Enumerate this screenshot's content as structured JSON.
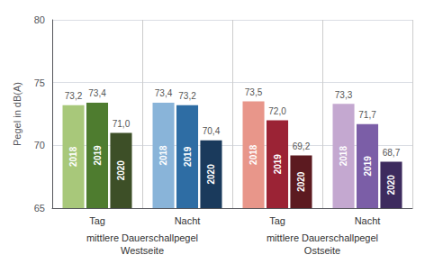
{
  "chart_data": {
    "type": "bar",
    "categories": [
      "Tag",
      "Nacht",
      "Tag",
      "Nacht"
    ],
    "series": [
      {
        "name": "2018",
        "values": [
          73.2,
          73.4,
          73.5,
          73.3
        ],
        "value_labels": [
          "73,2",
          "73,4",
          "73,5",
          "73,3"
        ],
        "colors": [
          "#a8c87a",
          "#89b4d9",
          "#e8968a",
          "#c4a8d0"
        ]
      },
      {
        "name": "2019",
        "values": [
          73.4,
          73.2,
          72.0,
          71.7
        ],
        "value_labels": [
          "73,4",
          "73,2",
          "72,0",
          "71,7"
        ],
        "colors": [
          "#4e7c2f",
          "#2e6da4",
          "#9b2335",
          "#7b5ea7"
        ]
      },
      {
        "name": "2020",
        "values": [
          71.0,
          70.4,
          69.2,
          68.7
        ],
        "value_labels": [
          "71,0",
          "70,4",
          "69,2",
          "68,7"
        ],
        "colors": [
          "#3d4f27",
          "#1a3a5c",
          "#5c1a20",
          "#3d2b5e"
        ]
      }
    ],
    "section_labels": [
      "mittlere Dauerschallpegel\nWestseite",
      "mittlere Dauerschallpegel\nOstseite"
    ],
    "ylabel": "Pegel in dB(A)",
    "ylim": [
      65,
      80
    ],
    "yticks": [
      65,
      70,
      75,
      80
    ],
    "grid": true,
    "data_labels": true
  }
}
